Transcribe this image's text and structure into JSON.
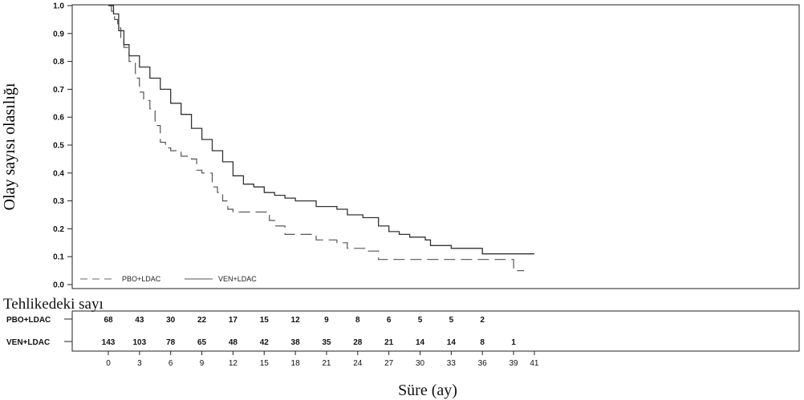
{
  "chart_data": {
    "type": "line",
    "ylabel": "Olay sayısı olasılığı",
    "xlabel": "Süre (ay)",
    "ylim": [
      0,
      1.0
    ],
    "yticks": [
      "0.0",
      "0.1",
      "0.2",
      "0.3",
      "0.4",
      "0.5",
      "0.6",
      "0.7",
      "0.8",
      "0.9",
      "1.0"
    ],
    "xticks": [
      "0",
      "3",
      "6",
      "9",
      "12",
      "15",
      "18",
      "21",
      "24",
      "27",
      "30",
      "33",
      "36",
      "39",
      "41"
    ],
    "legend_position": "bottom-left",
    "series": [
      {
        "name": "PBO+LDAC",
        "style": "dashed",
        "color": "#555555",
        "points": [
          [
            0,
            1.0
          ],
          [
            0.3,
            0.98
          ],
          [
            0.6,
            0.95
          ],
          [
            0.9,
            0.92
          ],
          [
            1.2,
            0.88
          ],
          [
            1.5,
            0.85
          ],
          [
            2.0,
            0.8
          ],
          [
            2.6,
            0.74
          ],
          [
            3.0,
            0.69
          ],
          [
            3.4,
            0.66
          ],
          [
            4.0,
            0.63
          ],
          [
            4.5,
            0.57
          ],
          [
            5.0,
            0.51
          ],
          [
            5.5,
            0.49
          ],
          [
            6.0,
            0.48
          ],
          [
            7.0,
            0.46
          ],
          [
            8.0,
            0.45
          ],
          [
            8.5,
            0.41
          ],
          [
            9.0,
            0.4
          ],
          [
            10.0,
            0.35
          ],
          [
            10.5,
            0.33
          ],
          [
            11.0,
            0.3
          ],
          [
            11.5,
            0.27
          ],
          [
            12.0,
            0.26
          ],
          [
            14.0,
            0.26
          ],
          [
            15.5,
            0.23
          ],
          [
            16.0,
            0.21
          ],
          [
            17.0,
            0.18
          ],
          [
            19.0,
            0.18
          ],
          [
            20.0,
            0.16
          ],
          [
            22.0,
            0.15
          ],
          [
            23.0,
            0.13
          ],
          [
            25.0,
            0.12
          ],
          [
            26.0,
            0.09
          ],
          [
            38.0,
            0.09
          ],
          [
            39.0,
            0.05
          ],
          [
            40.0,
            0.05
          ]
        ]
      },
      {
        "name": "VEN+LDAC",
        "style": "solid",
        "color": "#333333",
        "points": [
          [
            0,
            1.0
          ],
          [
            0.5,
            0.97
          ],
          [
            1.0,
            0.91
          ],
          [
            1.5,
            0.86
          ],
          [
            2.0,
            0.82
          ],
          [
            3.0,
            0.78
          ],
          [
            4.0,
            0.74
          ],
          [
            5.0,
            0.7
          ],
          [
            6.0,
            0.65
          ],
          [
            7.0,
            0.61
          ],
          [
            8.0,
            0.56
          ],
          [
            9.0,
            0.52
          ],
          [
            10.0,
            0.48
          ],
          [
            11.0,
            0.44
          ],
          [
            12.0,
            0.39
          ],
          [
            13.0,
            0.36
          ],
          [
            14.0,
            0.35
          ],
          [
            15.0,
            0.33
          ],
          [
            16.0,
            0.32
          ],
          [
            17.0,
            0.31
          ],
          [
            18.0,
            0.3
          ],
          [
            20.0,
            0.28
          ],
          [
            22.0,
            0.27
          ],
          [
            23.0,
            0.25
          ],
          [
            24.5,
            0.24
          ],
          [
            26.0,
            0.21
          ],
          [
            27.0,
            0.19
          ],
          [
            28.0,
            0.18
          ],
          [
            29.0,
            0.17
          ],
          [
            30.5,
            0.16
          ],
          [
            31.0,
            0.14
          ],
          [
            33.0,
            0.13
          ],
          [
            36.0,
            0.11
          ],
          [
            41.0,
            0.11
          ]
        ]
      }
    ]
  },
  "risk_table": {
    "title": "Tehlikedeki sayı",
    "rows": [
      {
        "label": "PBO+LDAC",
        "values": [
          "68",
          "43",
          "30",
          "22",
          "17",
          "15",
          "12",
          "9",
          "8",
          "6",
          "5",
          "5",
          "2"
        ]
      },
      {
        "label": "VEN+LDAC",
        "values": [
          "143",
          "103",
          "78",
          "65",
          "48",
          "42",
          "38",
          "35",
          "28",
          "21",
          "14",
          "14",
          "8",
          "1"
        ]
      }
    ]
  }
}
